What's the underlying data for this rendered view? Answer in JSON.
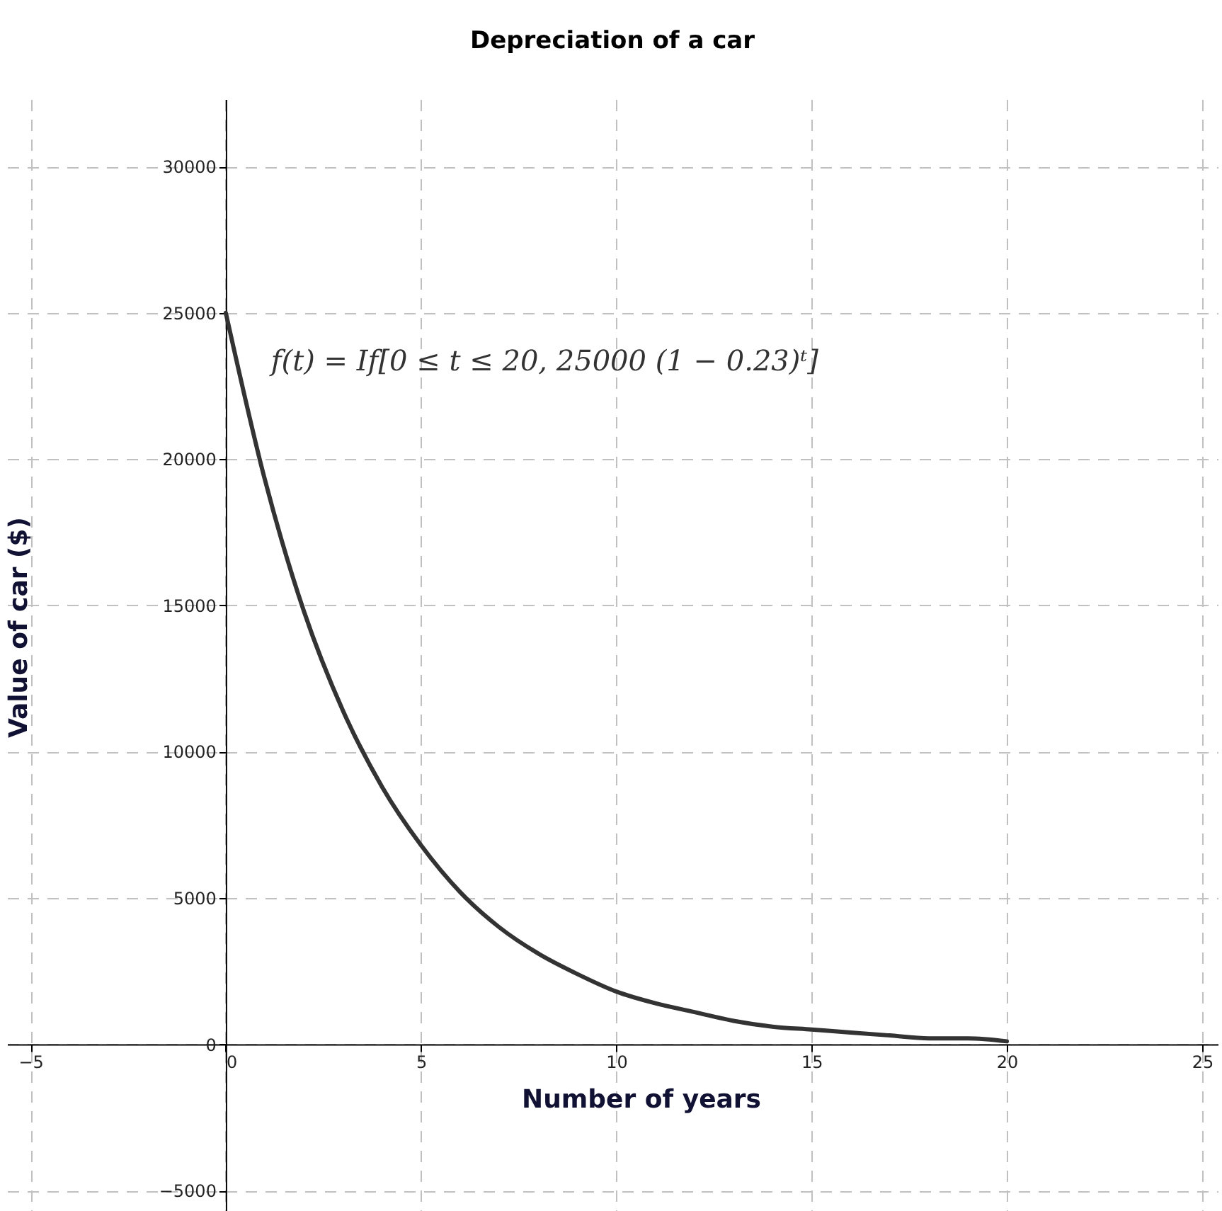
{
  "chart_data": {
    "type": "line",
    "title": "Depreciation of a car",
    "xlabel": "Number of years",
    "ylabel": "Value of car ($)",
    "annotations": [
      "f(t) = If[0 ≤ t ≤ 20, 25000 (1 − 0.23)ᵗ]"
    ],
    "x": [
      0,
      1,
      2,
      3,
      4,
      5,
      6,
      7,
      8,
      9,
      10,
      11,
      12,
      13,
      14,
      15,
      16,
      17,
      18,
      19,
      20
    ],
    "series": [
      {
        "color": "#333333",
        "values": [
          25000,
          19300,
          14800,
          11400,
          8800,
          6800,
          5200,
          4000,
          3100,
          2400,
          1800,
          1400,
          1100,
          800,
          600,
          500,
          400,
          300,
          200,
          200,
          100
        ]
      }
    ],
    "xlim": [
      -5.6,
      25.4
    ],
    "ylim": [
      -5700,
      32300
    ],
    "xticks": [
      -5,
      0,
      5,
      10,
      15,
      20,
      25
    ],
    "yticks": [
      -5000,
      0,
      5000,
      10000,
      15000,
      20000,
      25000,
      30000
    ],
    "grid": true,
    "marker": "none",
    "line_style": "solid"
  }
}
